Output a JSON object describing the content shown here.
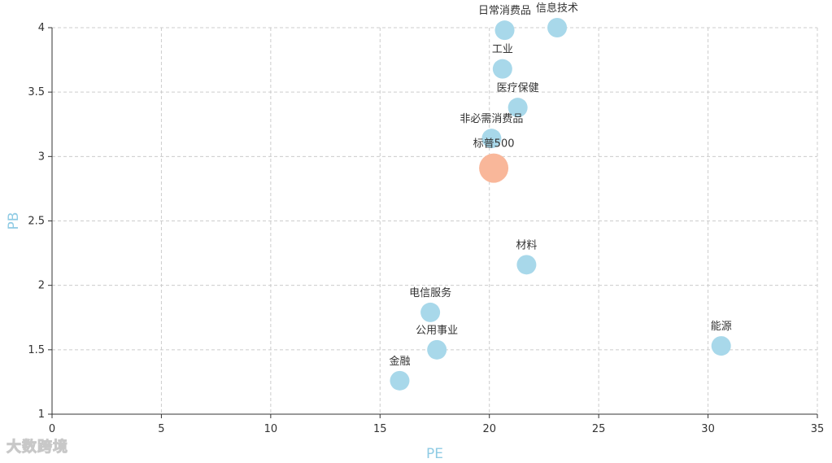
{
  "chart_data": {
    "type": "scatter",
    "xlabel": "PE",
    "ylabel": "PB",
    "xlim": [
      0,
      35
    ],
    "ylim": [
      1,
      4
    ],
    "x_ticks": [
      0,
      5,
      10,
      15,
      20,
      25,
      30,
      35
    ],
    "y_ticks": [
      1,
      1.5,
      2,
      2.5,
      3,
      3.5,
      4
    ],
    "grid": true,
    "points": [
      {
        "label": "日常消费品",
        "x": 20.7,
        "y": 3.98,
        "color": "#a8d8ea",
        "highlight": false
      },
      {
        "label": "信息技术",
        "x": 23.1,
        "y": 4.0,
        "color": "#a8d8ea",
        "highlight": false
      },
      {
        "label": "工业",
        "x": 20.6,
        "y": 3.68,
        "color": "#a8d8ea",
        "highlight": false
      },
      {
        "label": "医疗保健",
        "x": 21.3,
        "y": 3.38,
        "color": "#a8d8ea",
        "highlight": false
      },
      {
        "label": "非必需消费品",
        "x": 20.1,
        "y": 3.14,
        "color": "#a8d8ea",
        "highlight": false
      },
      {
        "label": "标普500",
        "x": 20.2,
        "y": 2.91,
        "color": "#f9b79a",
        "highlight": true
      },
      {
        "label": "材料",
        "x": 21.7,
        "y": 2.16,
        "color": "#a8d8ea",
        "highlight": false
      },
      {
        "label": "电信服务",
        "x": 17.3,
        "y": 1.79,
        "color": "#a8d8ea",
        "highlight": false
      },
      {
        "label": "公用事业",
        "x": 17.6,
        "y": 1.5,
        "color": "#a8d8ea",
        "highlight": false
      },
      {
        "label": "能源",
        "x": 30.6,
        "y": 1.53,
        "color": "#a8d8ea",
        "highlight": false
      },
      {
        "label": "金融",
        "x": 15.9,
        "y": 1.26,
        "color": "#a8d8ea",
        "highlight": false
      }
    ]
  },
  "watermark": "大数跨境"
}
